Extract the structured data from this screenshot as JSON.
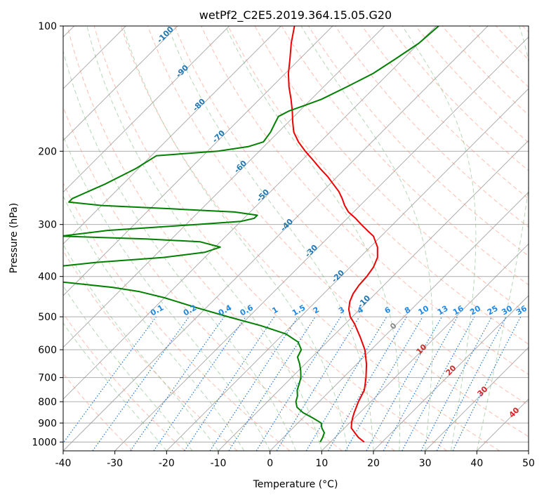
{
  "chart_data": {
    "type": "line",
    "title": "wetPf2_C2E5.2019.364.15.05.G20",
    "xlabel": "Temperature (°C)",
    "ylabel": "Pressure (hPa)",
    "xlim": [
      -40,
      50
    ],
    "ylim": [
      1050,
      100
    ],
    "y_scale": "log",
    "x_ticks": [
      -40,
      -30,
      -20,
      -10,
      0,
      10,
      20,
      30,
      40,
      50
    ],
    "y_ticks": [
      100,
      200,
      300,
      400,
      500,
      600,
      700,
      800,
      900,
      1000
    ],
    "grid": true,
    "colors": {
      "temperature": "#ee0000",
      "dewpoint": "#008000",
      "dry_adiabat": "#fa8060",
      "moist_adiabat": "#7ab87a",
      "mixing_ratio": "#1f77d4",
      "isotherm": "#8c8c8c",
      "skew_label": "#1f77b4",
      "mixing_label": "#1e88e5",
      "warm_label": "#d62728"
    },
    "series": [
      {
        "key": "temperature",
        "pressure": [
          1000,
          975,
          950,
          925,
          900,
          875,
          850,
          800,
          750,
          700,
          650,
          600,
          560,
          520,
          500,
          480,
          460,
          440,
          420,
          400,
          380,
          360,
          340,
          320,
          310,
          300,
          290,
          280,
          270,
          260,
          250,
          240,
          230,
          220,
          210,
          200,
          190,
          180,
          170,
          160,
          150,
          140,
          130,
          120,
          110,
          100
        ],
        "values": [
          16.5,
          14.5,
          12.9,
          11.3,
          10.4,
          9.6,
          8.9,
          7.6,
          6.5,
          4.4,
          1.9,
          -1.2,
          -4.5,
          -8.2,
          -10.4,
          -12.1,
          -13.4,
          -14.3,
          -14.8,
          -15.0,
          -15.5,
          -16.6,
          -18.6,
          -21.5,
          -23.8,
          -26.1,
          -28.4,
          -31.0,
          -33.0,
          -34.8,
          -36.8,
          -39.3,
          -41.9,
          -44.9,
          -47.9,
          -51.1,
          -54.2,
          -57.0,
          -59.2,
          -61.4,
          -63.9,
          -66.7,
          -69.4,
          -71.9,
          -74.7,
          -77.4
        ]
      },
      {
        "key": "dewpoint",
        "pressure": [
          1000,
          975,
          950,
          925,
          900,
          875,
          850,
          825,
          800,
          775,
          750,
          725,
          700,
          675,
          650,
          625,
          600,
          575,
          550,
          525,
          500,
          475,
          450,
          435,
          425,
          410,
          400,
          390,
          380,
          370,
          360,
          350,
          340,
          330,
          325,
          320,
          310,
          300,
          295,
          290,
          285,
          280,
          275,
          270,
          265,
          260,
          240,
          220,
          205,
          200,
          195,
          190,
          180,
          170,
          165,
          160,
          155,
          150,
          140,
          130,
          120,
          110,
          100
        ],
        "values": [
          8.0,
          7.6,
          7.0,
          5.6,
          4.5,
          1.9,
          -1.0,
          -3.2,
          -4.5,
          -5.3,
          -6.5,
          -7.3,
          -8.2,
          -9.5,
          -11.0,
          -12.8,
          -13.5,
          -15.6,
          -19.5,
          -26.0,
          -34.0,
          -42.0,
          -50.0,
          -56.0,
          -62.0,
          -75.0,
          -80.0,
          -80.0,
          -78.0,
          -70.0,
          -58.0,
          -51.0,
          -49.0,
          -54.0,
          -65.0,
          -82.0,
          -74.0,
          -58.0,
          -50.0,
          -48.0,
          -48.0,
          -53.0,
          -66.0,
          -80.0,
          -87.0,
          -87.0,
          -83.5,
          -80.5,
          -79.0,
          -68.0,
          -63.0,
          -61.0,
          -61.5,
          -62.5,
          -63.0,
          -62.0,
          -60.0,
          -58.0,
          -55.5,
          -53.0,
          -51.5,
          -50.0,
          -49.5
        ]
      }
    ],
    "skew_labels": [
      "-100",
      "-90",
      "-80",
      "-70",
      "-60",
      "-50",
      "-40",
      "-30",
      "-20",
      "-10"
    ],
    "zero_label": "0",
    "warm_labels": [
      "10",
      "20",
      "30",
      "40"
    ],
    "mixing_ratio_labels": [
      "0.1",
      "0.2",
      "0.4",
      "0.6",
      "1",
      "1.5",
      "2",
      "3",
      "4",
      "6",
      "8",
      "10",
      "13",
      "16",
      "20",
      "25",
      "30",
      "36"
    ]
  }
}
